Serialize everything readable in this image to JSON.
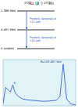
{
  "diagram": {
    "title": "¹⁰³Ru (β⁻) ¹⁰³Rh",
    "levels": [
      "1.388 MeV",
      "0.497 MeV",
      "0 (stable)"
    ],
    "transitions": [
      {
        "from": 0,
        "to": 1,
        "label": "Photons detected at 137 keV"
      },
      {
        "from": 1,
        "to": 2,
        "label": "Photons detected at 110 keV"
      }
    ]
  },
  "chart_data": {
    "type": "line",
    "color": "#2050c8",
    "x": [
      0,
      20,
      40,
      60,
      80,
      100,
      120,
      140,
      160,
      200,
      240,
      280,
      320,
      360,
      400,
      440,
      470,
      485,
      497,
      510,
      525,
      560,
      600
    ],
    "values": [
      5,
      40,
      35,
      30,
      45,
      28,
      22,
      18,
      15,
      13,
      12,
      11,
      10,
      10,
      11,
      12,
      20,
      60,
      90,
      55,
      15,
      4,
      2
    ],
    "xlim": [
      0,
      600
    ],
    "ylim": [
      0,
      100
    ],
    "tick_labels": false,
    "annotations": [
      {
        "text": "X",
        "x": 80,
        "y": 45
      },
      {
        "text": "Ru103 497 keV",
        "x": 497,
        "y": 90
      }
    ]
  }
}
